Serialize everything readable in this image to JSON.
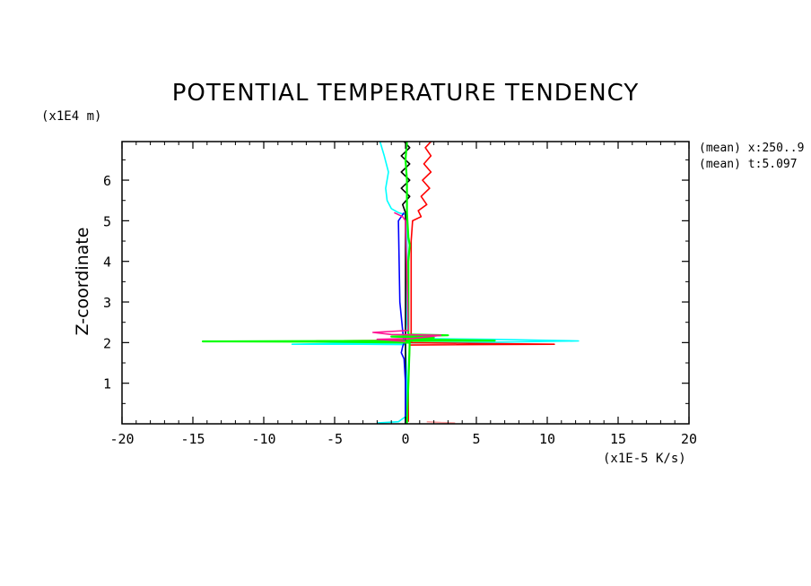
{
  "chart_data": {
    "type": "line",
    "title": "POTENTIAL TEMPERATURE TENDENCY",
    "xlabel": "(x1E-5 K/s)",
    "ylabel": "Z-coordinate",
    "y_unit": "(x1E4 m)",
    "xlim": [
      -20,
      20
    ],
    "ylim": [
      0,
      6.95
    ],
    "x_ticks": [
      "-20",
      "-15",
      "-10",
      "-5",
      "0",
      "5",
      "10",
      "15",
      "20"
    ],
    "y_ticks": [
      "1",
      "2",
      "3",
      "4",
      "5",
      "6"
    ],
    "annotations": [
      "(mean) x:250..9",
      "(mean) t:5.097"
    ],
    "grid": false,
    "legend": "none",
    "series": [
      {
        "color": "#00ffff",
        "points": [
          [
            -1.8,
            6.95
          ],
          [
            -1.5,
            6.6
          ],
          [
            -1.2,
            6.2
          ],
          [
            -1.4,
            5.8
          ],
          [
            -1.3,
            5.5
          ],
          [
            -1.0,
            5.3
          ],
          [
            -0.5,
            5.2
          ],
          [
            0,
            5.15
          ],
          [
            0.1,
            4.8
          ],
          [
            0.1,
            2.5
          ],
          [
            0.2,
            2.1
          ],
          [
            6,
            2.08
          ],
          [
            12.2,
            2.04
          ],
          [
            4,
            2.0
          ],
          [
            -5,
            1.98
          ],
          [
            -8,
            1.96
          ],
          [
            -3,
            1.96
          ],
          [
            0,
            1.95
          ],
          [
            0.1,
            1.0
          ],
          [
            0.1,
            0.2
          ],
          [
            -0.5,
            0.05
          ],
          [
            -2,
            0.02
          ]
        ]
      },
      {
        "color": "#ff0000",
        "points": [
          [
            1.8,
            6.95
          ],
          [
            1.4,
            6.8
          ],
          [
            1.8,
            6.6
          ],
          [
            1.3,
            6.4
          ],
          [
            1.8,
            6.2
          ],
          [
            1.2,
            6.0
          ],
          [
            1.7,
            5.8
          ],
          [
            1.1,
            5.6
          ],
          [
            1.5,
            5.4
          ],
          [
            0.9,
            5.25
          ],
          [
            1.1,
            5.1
          ],
          [
            0.5,
            5.0
          ],
          [
            0.4,
            4.5
          ],
          [
            0.4,
            3.0
          ],
          [
            0.4,
            2.2
          ],
          [
            0.3,
            2.06
          ],
          [
            -2,
            2.05
          ],
          [
            -6.3,
            2.04
          ],
          [
            -1,
            2.02
          ],
          [
            0.5,
            2.0
          ],
          [
            5,
            1.98
          ],
          [
            10.5,
            1.96
          ],
          [
            5,
            1.95
          ],
          [
            0.3,
            1.94
          ],
          [
            0.2,
            1.0
          ],
          [
            0.2,
            0.05
          ]
        ]
      },
      {
        "color": "#000000",
        "points": [
          [
            -0.1,
            6.95
          ],
          [
            0.3,
            6.8
          ],
          [
            -0.3,
            6.6
          ],
          [
            0.3,
            6.4
          ],
          [
            -0.3,
            6.2
          ],
          [
            0.3,
            6.0
          ],
          [
            -0.3,
            5.8
          ],
          [
            0.3,
            5.6
          ],
          [
            -0.2,
            5.4
          ],
          [
            0,
            5.2
          ],
          [
            0,
            1.0
          ],
          [
            0,
            0
          ]
        ]
      },
      {
        "color": "#0000ff",
        "points": [
          [
            -0.1,
            5.2
          ],
          [
            -0.5,
            5.0
          ],
          [
            -0.4,
            3.0
          ],
          [
            -0.2,
            2.3
          ],
          [
            -0.1,
            2.0
          ],
          [
            -0.2,
            1.9
          ],
          [
            -0.3,
            1.75
          ],
          [
            -0.1,
            1.6
          ],
          [
            0,
            1.0
          ],
          [
            0,
            0
          ]
        ]
      },
      {
        "color": "#00ff00",
        "points": [
          [
            0.1,
            6.95
          ],
          [
            0,
            6.5
          ],
          [
            0.1,
            6.0
          ],
          [
            0.1,
            5.2
          ],
          [
            0.2,
            4.6
          ],
          [
            0.3,
            4.4
          ],
          [
            0.2,
            4.0
          ],
          [
            0.2,
            2.2
          ],
          [
            3,
            2.18
          ],
          [
            -1,
            2.15
          ],
          [
            2,
            2.12
          ],
          [
            0.2,
            2.08
          ],
          [
            6.3,
            2.05
          ],
          [
            -3,
            2.04
          ],
          [
            -14.3,
            2.03
          ],
          [
            -5,
            2.02
          ],
          [
            0.3,
            2.0
          ],
          [
            0.2,
            1.0
          ],
          [
            0.1,
            0
          ]
        ]
      },
      {
        "color": "#ff1493",
        "points": [
          [
            -0.8,
            5.2
          ],
          [
            -0.2,
            5.1
          ],
          [
            0,
            5.0
          ],
          [
            0.2,
            2.3
          ],
          [
            -2.3,
            2.25
          ],
          [
            -1,
            2.2
          ],
          [
            2.5,
            2.18
          ],
          [
            0.5,
            2.1
          ],
          [
            -2,
            2.08
          ],
          [
            0,
            2.03
          ]
        ]
      },
      {
        "color": "#ffa0a0",
        "points": [
          [
            1.5,
            0.05
          ],
          [
            2.5,
            0.03
          ],
          [
            3.5,
            0.02
          ]
        ]
      }
    ]
  }
}
